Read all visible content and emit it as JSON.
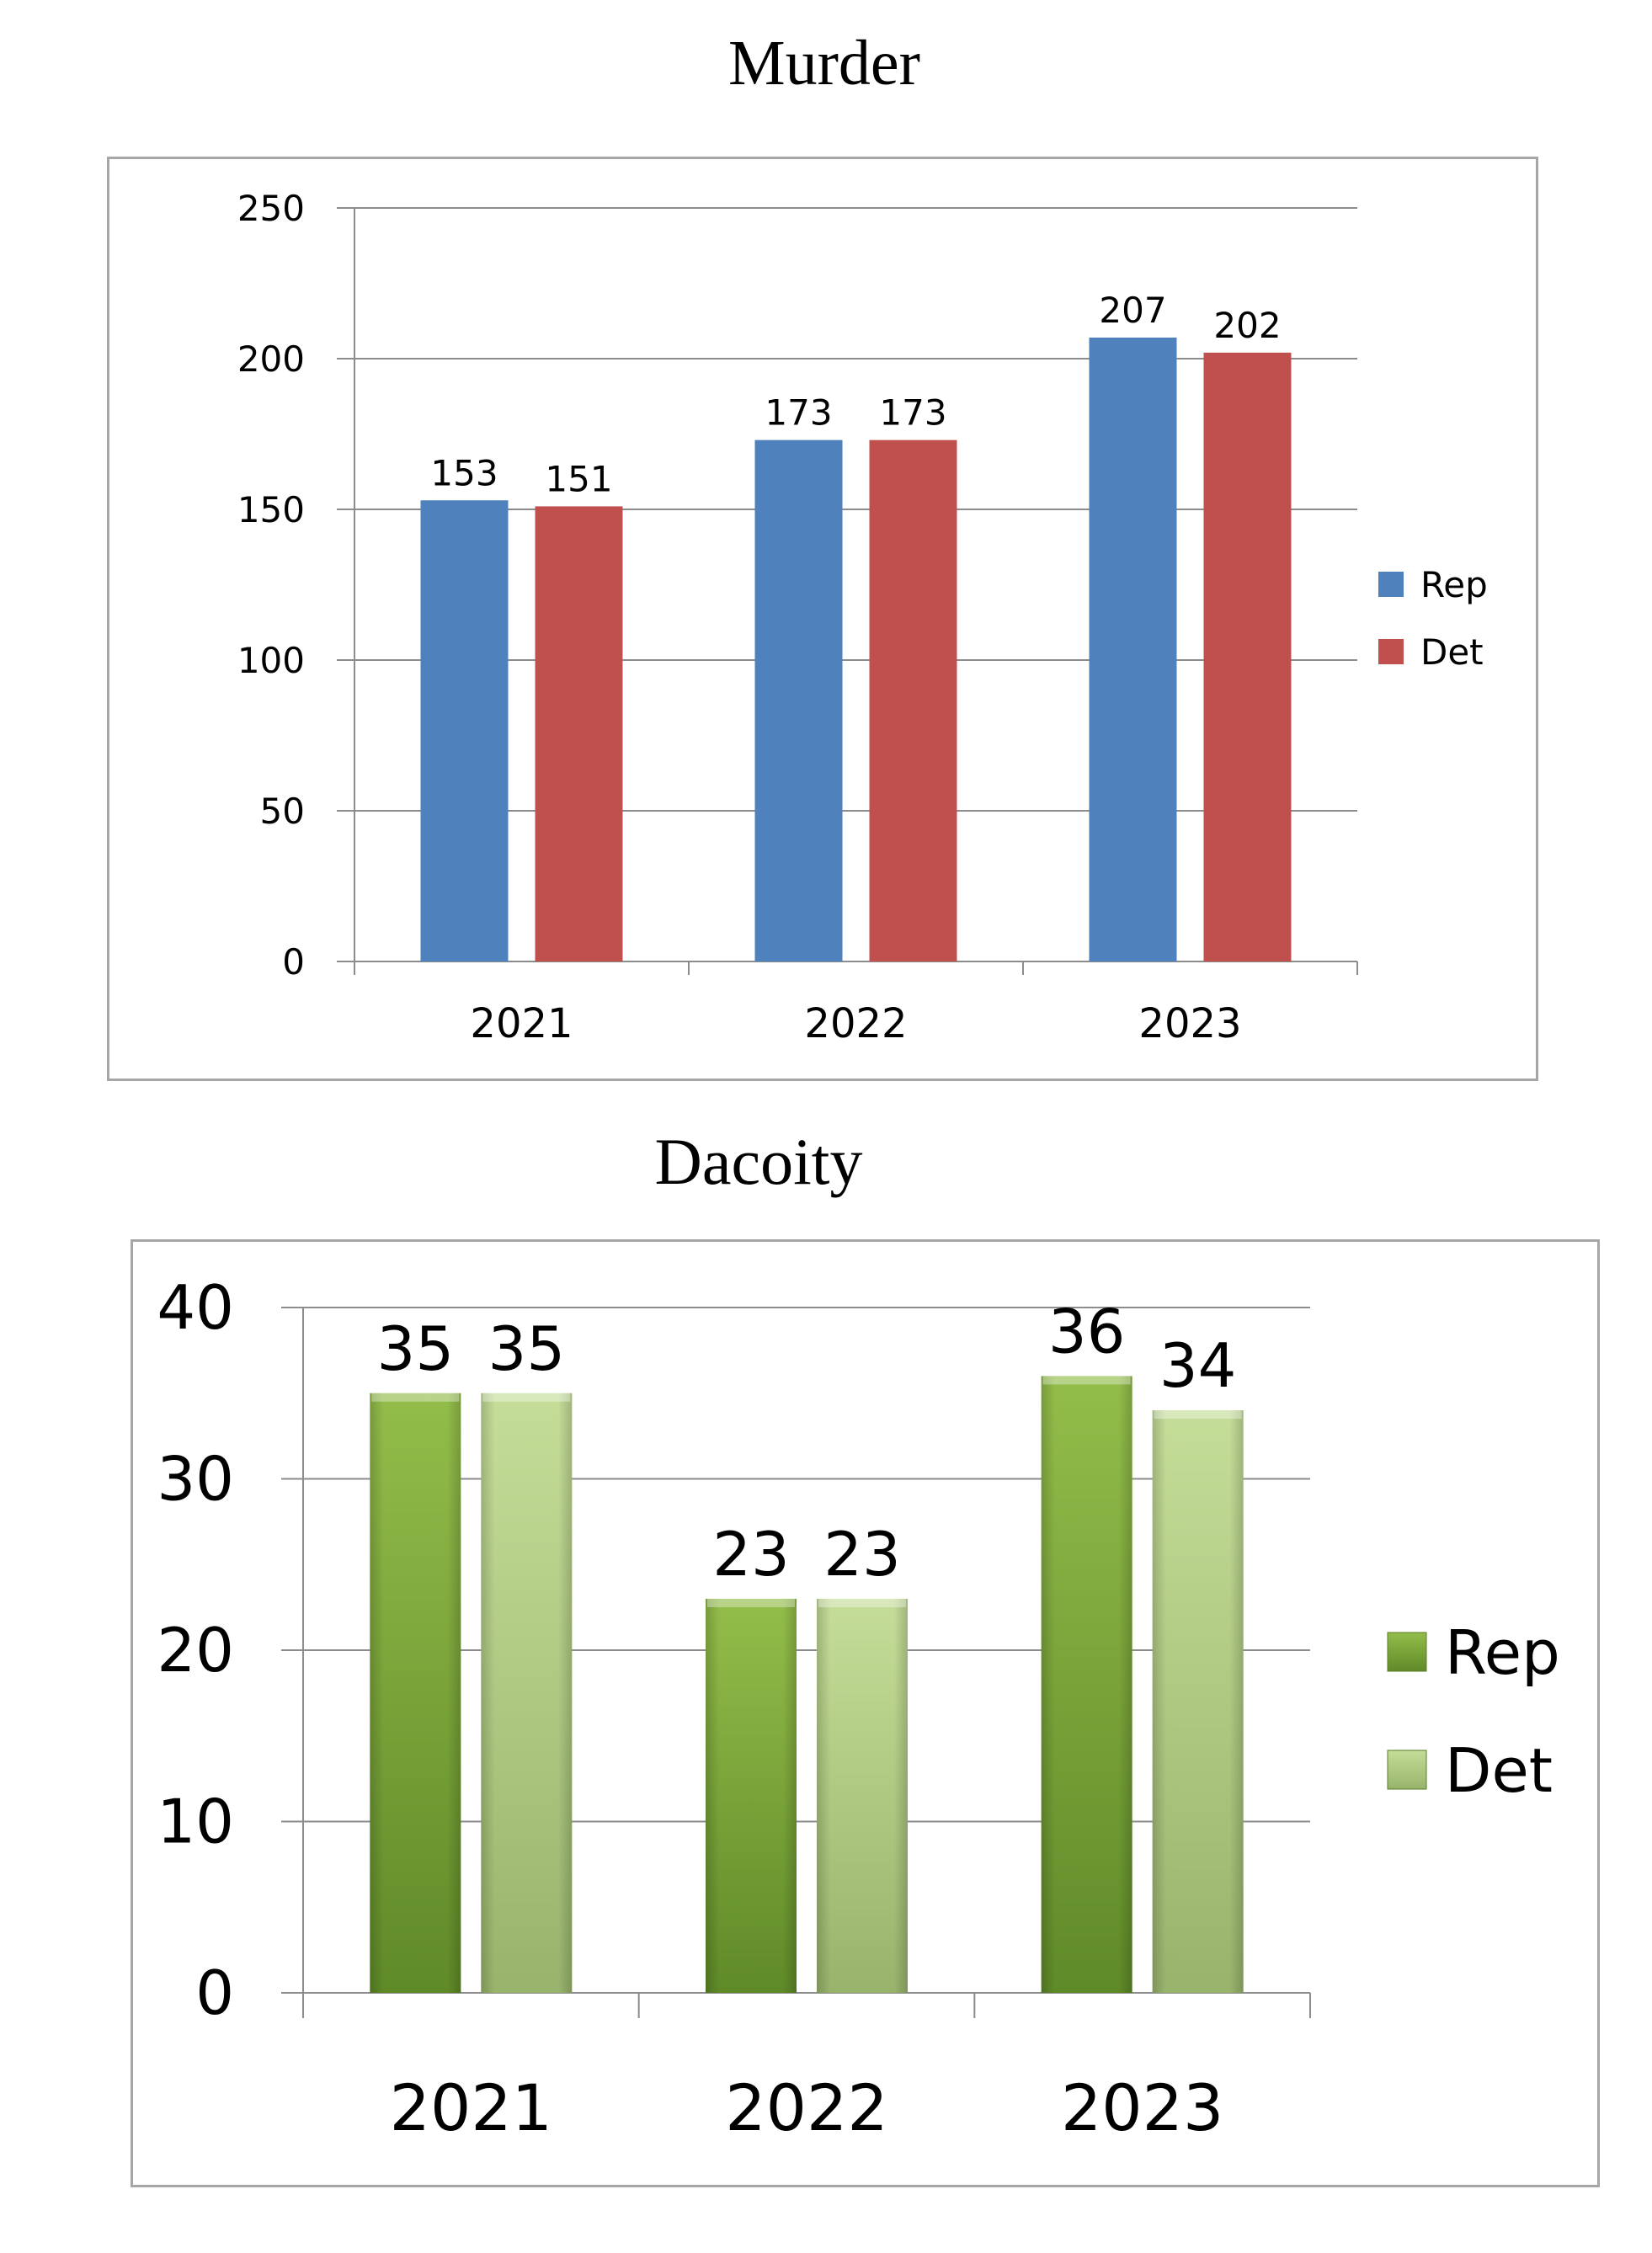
{
  "chart_data": [
    {
      "type": "bar",
      "title": "Murder",
      "categories": [
        "2021",
        "2022",
        "2023"
      ],
      "series": [
        {
          "name": "Rep",
          "values": [
            153,
            173,
            207
          ],
          "color": "#4f81bd"
        },
        {
          "name": "Det",
          "values": [
            151,
            173,
            202
          ],
          "color": "#c0504d"
        }
      ],
      "ylim": [
        0,
        250
      ],
      "yticks": [
        "0",
        "50",
        "100",
        "150",
        "200",
        "250"
      ],
      "grid": true,
      "legend": "right",
      "data_labels": true
    },
    {
      "type": "bar",
      "title": "Dacoity",
      "categories": [
        "2021",
        "2022",
        "2023"
      ],
      "series": [
        {
          "name": "Rep",
          "values": [
            35,
            23,
            36
          ],
          "color": "#77a02e"
        },
        {
          "name": "Det",
          "values": [
            35,
            23,
            34
          ],
          "color": "#b6d28a"
        }
      ],
      "ylim": [
        0,
        40
      ],
      "yticks": [
        "0",
        "10",
        "20",
        "30",
        "40"
      ],
      "grid": true,
      "legend": "right",
      "data_labels": true
    }
  ]
}
